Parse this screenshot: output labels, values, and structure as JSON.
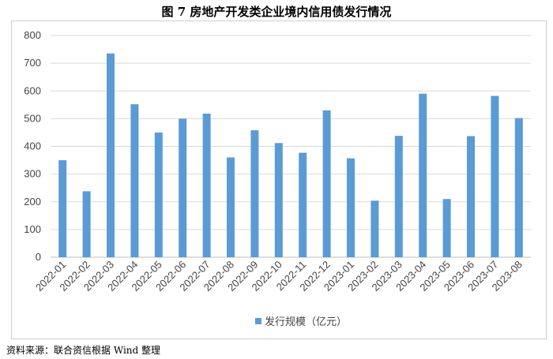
{
  "title": "图 7   房地产开发类企业境内信用债发行情况",
  "source": "资料来源：联合资信根据 Wind 整理",
  "chart_data": {
    "type": "bar",
    "categories": [
      "2022-01",
      "2022-02",
      "2022-03",
      "2022-04",
      "2022-05",
      "2022-06",
      "2022-07",
      "2022-08",
      "2022-09",
      "2022-10",
      "2022-11",
      "2022-12",
      "2023-01",
      "2023-02",
      "2023-03",
      "2023-04",
      "2023-05",
      "2023-06",
      "2023-07",
      "2023-08"
    ],
    "series": [
      {
        "name": "发行规模（亿元）",
        "values": [
          350,
          238,
          735,
          552,
          450,
          500,
          518,
          360,
          458,
          412,
          377,
          530,
          357,
          204,
          438,
          590,
          210,
          437,
          582,
          502
        ],
        "color": "#5b9bd5"
      }
    ],
    "ylim": [
      0,
      800
    ],
    "yticks": [
      0,
      100,
      200,
      300,
      400,
      500,
      600,
      700,
      800
    ],
    "grid": true,
    "legend": "bottom"
  }
}
